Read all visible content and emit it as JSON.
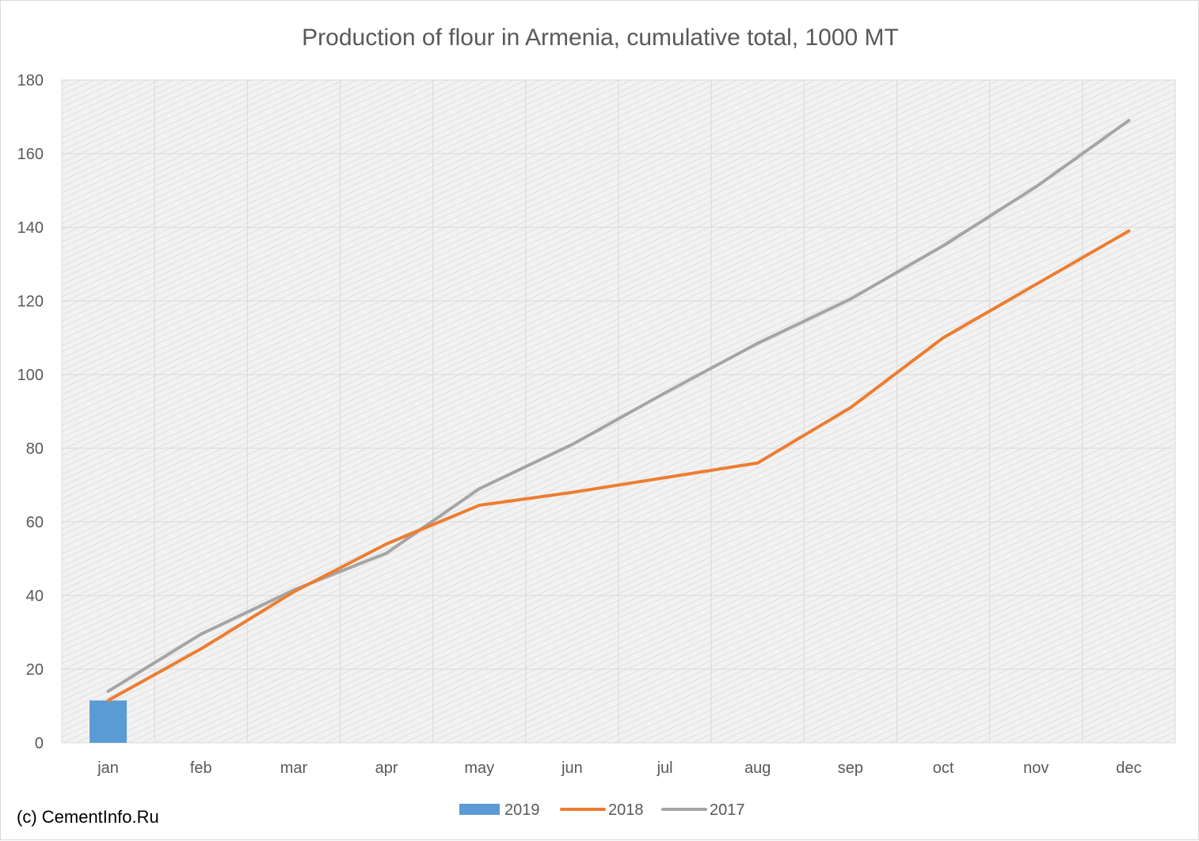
{
  "credit": "(c) CementInfo.Ru",
  "colors": {
    "plot_background": "#f2f2f2",
    "hatch": "#d9d9d9",
    "gridline": "#d9d9d9",
    "text": "#595959"
  },
  "chart_data": {
    "type": "bar",
    "title": "Production of flour in Armenia, cumulative total, 1000 MT",
    "xlabel": "",
    "ylabel": "",
    "categories": [
      "jan",
      "feb",
      "mar",
      "apr",
      "may",
      "jun",
      "jul",
      "aug",
      "sep",
      "oct",
      "nov",
      "dec"
    ],
    "ylim": [
      0,
      180
    ],
    "yticks": [
      0,
      20,
      40,
      60,
      80,
      100,
      120,
      140,
      160,
      180
    ],
    "grid": true,
    "legend": "bottom",
    "series": [
      {
        "name": "2019",
        "type": "bar",
        "color": "#5b9bd5",
        "values": [
          11.5,
          null,
          null,
          null,
          null,
          null,
          null,
          null,
          null,
          null,
          null,
          null
        ]
      },
      {
        "name": "2018",
        "type": "line",
        "color": "#ed7d31",
        "values": [
          11.5,
          25.5,
          41,
          54,
          64.5,
          68,
          72,
          76,
          91,
          110,
          124.5,
          139
        ]
      },
      {
        "name": "2017",
        "type": "line",
        "color": "#a5a5a5",
        "values": [
          14,
          29.5,
          41.5,
          51.5,
          69,
          81,
          95,
          108.5,
          120.5,
          135,
          151,
          169
        ]
      }
    ]
  }
}
